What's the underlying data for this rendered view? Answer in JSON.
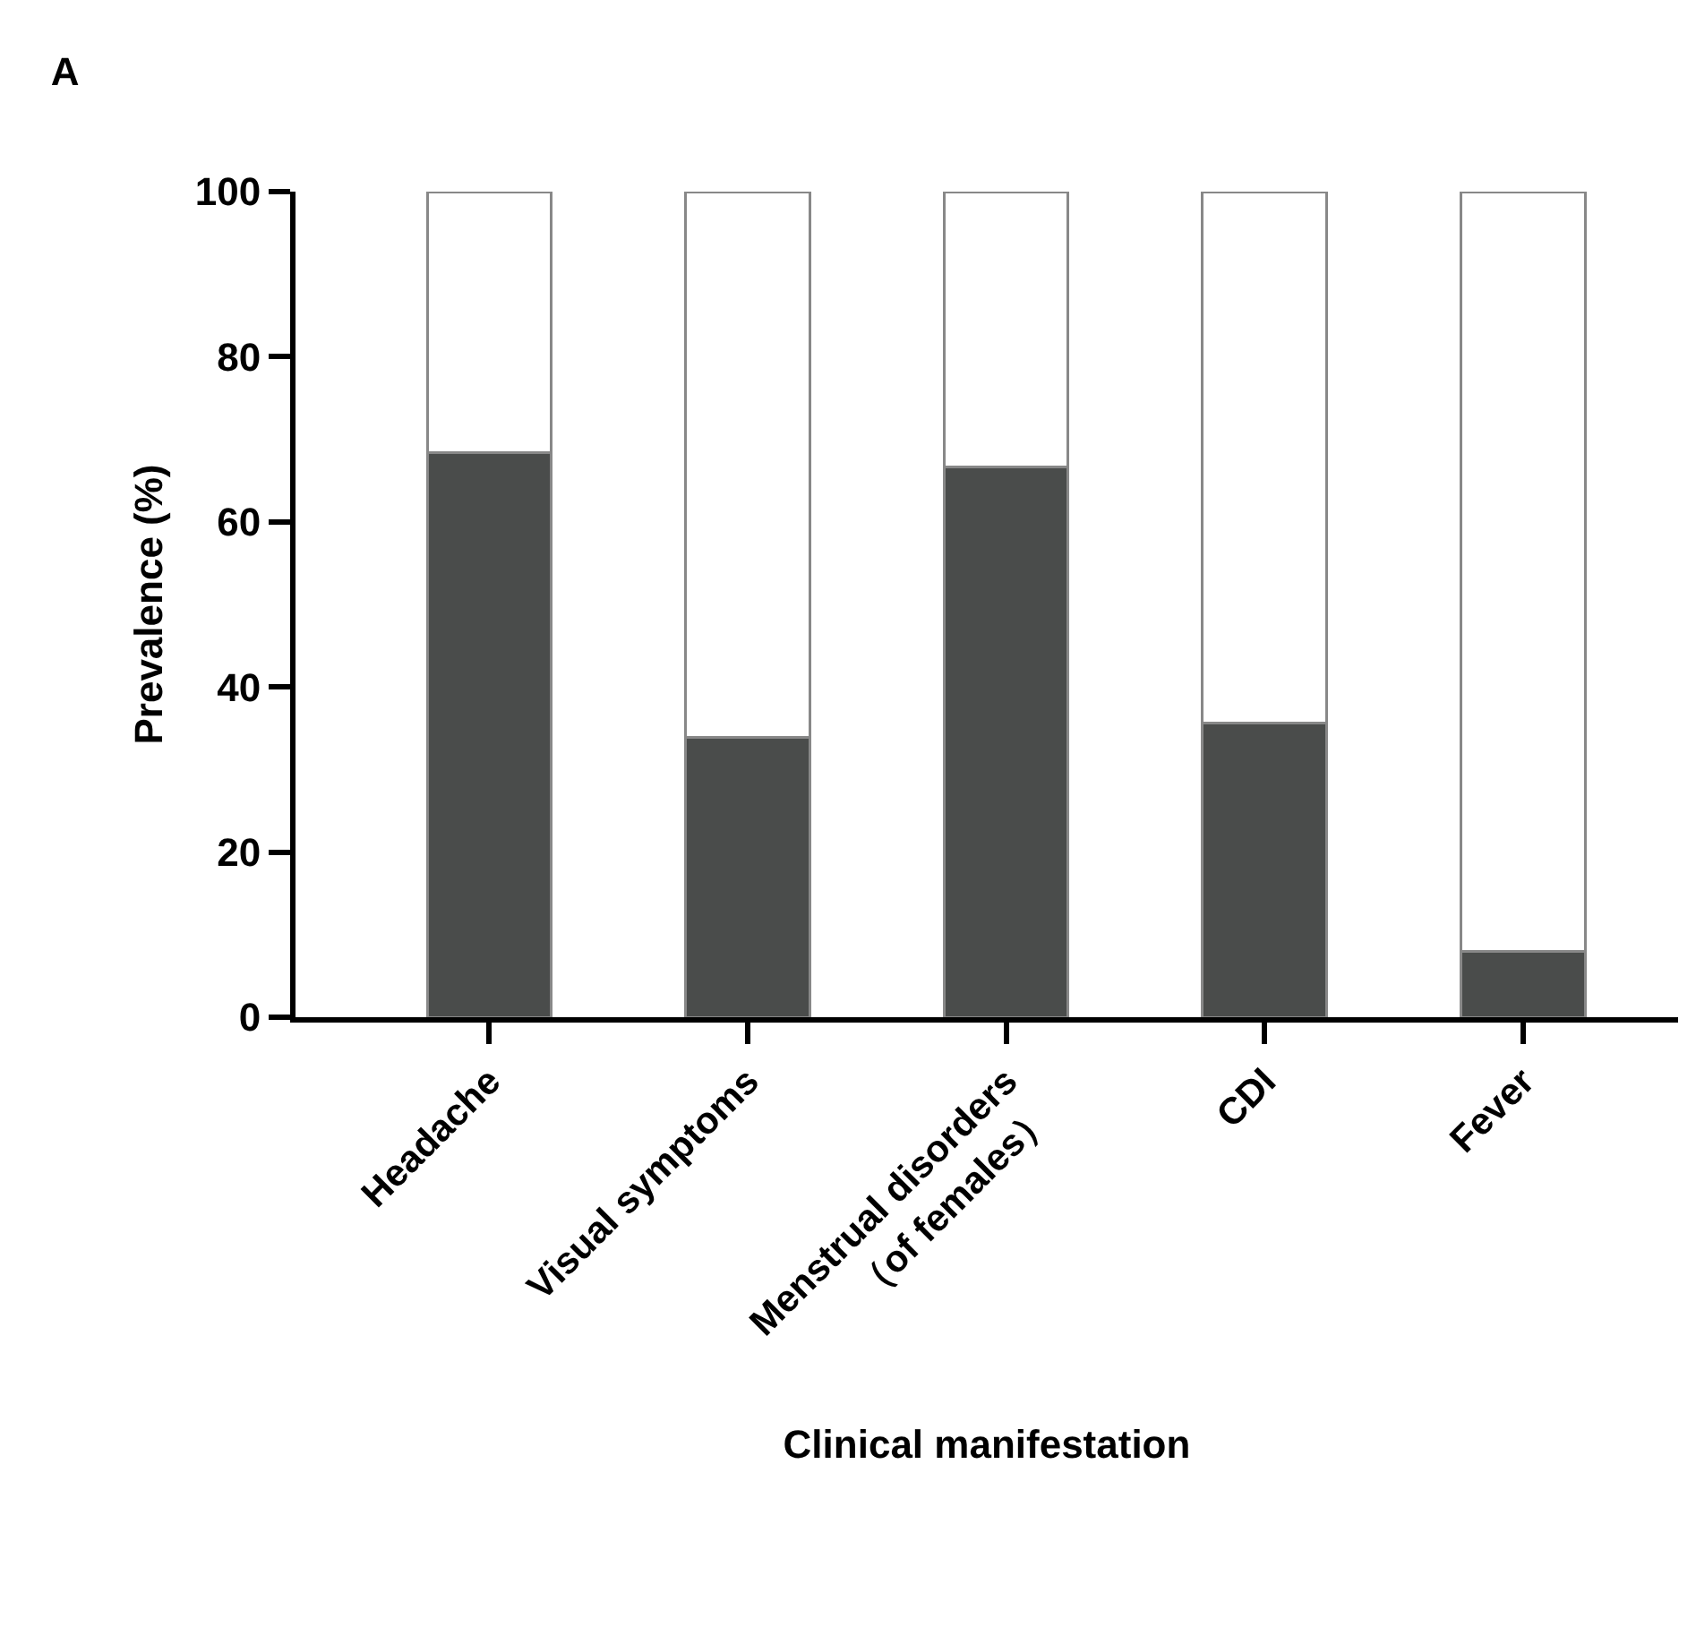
{
  "chart_data": {
    "type": "bar",
    "title": "A",
    "xlabel": "Clinical manifestation",
    "ylabel": "Prevalence (%)",
    "categories": [
      "Headache",
      "Visual symptoms",
      "Menstrual disorders\n（of females）",
      "CDI",
      "Fever"
    ],
    "stacked": true,
    "series": [
      {
        "color": "#4a4c4b",
        "values": [
          68.4,
          33.9,
          66.6,
          35.6,
          8.0
        ]
      },
      {
        "color": "#ffffff",
        "values": [
          31.6,
          66.1,
          33.4,
          64.4,
          92.0
        ]
      }
    ],
    "ylim": [
      0,
      100
    ],
    "yticks": [
      0,
      20,
      40,
      60,
      80,
      100
    ]
  }
}
